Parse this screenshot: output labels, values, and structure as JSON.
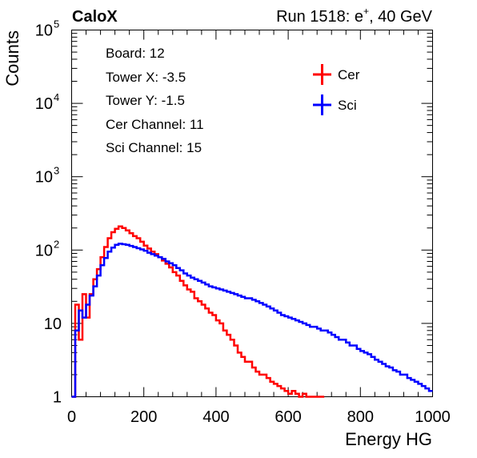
{
  "header": {
    "left_label": "CaloX",
    "right_label_prefix": "Run 1518: e",
    "right_label_sup": "+",
    "right_label_suffix": ", 40 GeV"
  },
  "info_box": {
    "lines": [
      "Board: 12",
      "Tower X: -3.5",
      "Tower Y: -1.5",
      "Cer Channel: 11",
      "Sci Channel: 15"
    ]
  },
  "chart_data": {
    "type": "line",
    "xlabel": "Energy HG",
    "ylabel": "Counts",
    "xlim": [
      0,
      1000
    ],
    "ylim": [
      1,
      100000
    ],
    "yscale": "log",
    "x_ticks": [
      0,
      200,
      400,
      600,
      800,
      1000
    ],
    "y_ticks": [
      {
        "value": 1,
        "label": "1"
      },
      {
        "value": 10,
        "label": "10"
      },
      {
        "value": 100,
        "label": "10",
        "exp": "2"
      },
      {
        "value": 1000,
        "label": "10",
        "exp": "3"
      },
      {
        "value": 10000,
        "label": "10",
        "exp": "4"
      },
      {
        "value": 100000,
        "label": "10",
        "exp": "5"
      }
    ],
    "legend_placement": "top-right",
    "series": [
      {
        "name": "Cer",
        "color": "#ff0000",
        "points": [
          [
            0,
            1
          ],
          [
            10,
            18
          ],
          [
            20,
            6
          ],
          [
            30,
            25
          ],
          [
            40,
            12
          ],
          [
            50,
            25
          ],
          [
            60,
            40
          ],
          [
            70,
            55
          ],
          [
            80,
            80
          ],
          [
            90,
            110
          ],
          [
            100,
            145
          ],
          [
            110,
            175
          ],
          [
            120,
            195
          ],
          [
            130,
            210
          ],
          [
            140,
            200
          ],
          [
            150,
            185
          ],
          [
            160,
            170
          ],
          [
            170,
            155
          ],
          [
            180,
            145
          ],
          [
            190,
            130
          ],
          [
            200,
            115
          ],
          [
            210,
            105
          ],
          [
            220,
            95
          ],
          [
            230,
            88
          ],
          [
            240,
            80
          ],
          [
            250,
            72
          ],
          [
            260,
            65
          ],
          [
            270,
            58
          ],
          [
            280,
            50
          ],
          [
            290,
            45
          ],
          [
            300,
            38
          ],
          [
            310,
            33
          ],
          [
            320,
            29
          ],
          [
            330,
            27
          ],
          [
            340,
            22
          ],
          [
            350,
            20
          ],
          [
            360,
            18
          ],
          [
            370,
            16
          ],
          [
            380,
            14
          ],
          [
            390,
            13
          ],
          [
            400,
            11
          ],
          [
            410,
            10
          ],
          [
            420,
            8
          ],
          [
            430,
            7
          ],
          [
            440,
            6
          ],
          [
            450,
            5
          ],
          [
            460,
            4
          ],
          [
            470,
            3.5
          ],
          [
            480,
            3
          ],
          [
            490,
            3
          ],
          [
            500,
            2.5
          ],
          [
            510,
            2.2
          ],
          [
            520,
            2
          ],
          [
            530,
            2
          ],
          [
            540,
            1.8
          ],
          [
            550,
            1.6
          ],
          [
            560,
            1.5
          ],
          [
            570,
            1.4
          ],
          [
            580,
            1.3
          ],
          [
            590,
            1.2
          ],
          [
            600,
            1.1
          ],
          [
            610,
            1.2
          ],
          [
            620,
            1.1
          ],
          [
            630,
            1
          ],
          [
            640,
            1.1
          ],
          [
            650,
            1
          ],
          [
            660,
            1
          ],
          [
            670,
            1
          ],
          [
            680,
            1
          ],
          [
            690,
            1
          ],
          [
            700,
            1
          ]
        ]
      },
      {
        "name": "Sci",
        "color": "#0000ff",
        "points": [
          [
            0,
            1
          ],
          [
            10,
            8
          ],
          [
            20,
            15
          ],
          [
            30,
            12
          ],
          [
            40,
            18
          ],
          [
            50,
            24
          ],
          [
            60,
            32
          ],
          [
            70,
            45
          ],
          [
            80,
            62
          ],
          [
            90,
            78
          ],
          [
            100,
            95
          ],
          [
            110,
            108
          ],
          [
            120,
            118
          ],
          [
            130,
            122
          ],
          [
            140,
            120
          ],
          [
            150,
            118
          ],
          [
            160,
            114
          ],
          [
            170,
            110
          ],
          [
            180,
            106
          ],
          [
            190,
            102
          ],
          [
            200,
            98
          ],
          [
            210,
            92
          ],
          [
            220,
            88
          ],
          [
            230,
            84
          ],
          [
            240,
            80
          ],
          [
            250,
            76
          ],
          [
            260,
            70
          ],
          [
            270,
            66
          ],
          [
            280,
            62
          ],
          [
            290,
            57
          ],
          [
            300,
            53
          ],
          [
            310,
            48
          ],
          [
            320,
            45
          ],
          [
            330,
            42
          ],
          [
            340,
            40
          ],
          [
            350,
            38
          ],
          [
            360,
            36
          ],
          [
            370,
            34
          ],
          [
            380,
            32
          ],
          [
            390,
            31
          ],
          [
            400,
            30
          ],
          [
            410,
            29
          ],
          [
            420,
            28
          ],
          [
            430,
            27
          ],
          [
            440,
            26
          ],
          [
            450,
            25
          ],
          [
            460,
            24
          ],
          [
            470,
            23
          ],
          [
            480,
            22
          ],
          [
            490,
            22
          ],
          [
            500,
            21
          ],
          [
            510,
            20
          ],
          [
            520,
            19
          ],
          [
            530,
            18
          ],
          [
            540,
            17
          ],
          [
            550,
            16
          ],
          [
            560,
            15
          ],
          [
            570,
            14
          ],
          [
            580,
            13
          ],
          [
            590,
            12.5
          ],
          [
            600,
            12
          ],
          [
            610,
            11.5
          ],
          [
            620,
            11
          ],
          [
            630,
            10.5
          ],
          [
            640,
            10
          ],
          [
            650,
            9.5
          ],
          [
            660,
            9
          ],
          [
            670,
            9
          ],
          [
            680,
            8.5
          ],
          [
            690,
            8
          ],
          [
            700,
            8
          ],
          [
            710,
            7.5
          ],
          [
            720,
            7
          ],
          [
            730,
            6.5
          ],
          [
            740,
            6
          ],
          [
            750,
            6
          ],
          [
            760,
            5.5
          ],
          [
            770,
            5
          ],
          [
            780,
            5
          ],
          [
            790,
            4.5
          ],
          [
            800,
            4.2
          ],
          [
            810,
            4
          ],
          [
            820,
            3.8
          ],
          [
            830,
            3.5
          ],
          [
            840,
            3.2
          ],
          [
            850,
            3
          ],
          [
            860,
            2.8
          ],
          [
            870,
            2.6
          ],
          [
            880,
            2.5
          ],
          [
            890,
            2.3
          ],
          [
            900,
            2.2
          ],
          [
            910,
            2
          ],
          [
            920,
            2
          ],
          [
            930,
            1.8
          ],
          [
            940,
            1.7
          ],
          [
            950,
            1.6
          ],
          [
            960,
            1.5
          ],
          [
            970,
            1.4
          ],
          [
            980,
            1.3
          ],
          [
            990,
            1.2
          ],
          [
            1000,
            1.1
          ]
        ]
      }
    ]
  }
}
